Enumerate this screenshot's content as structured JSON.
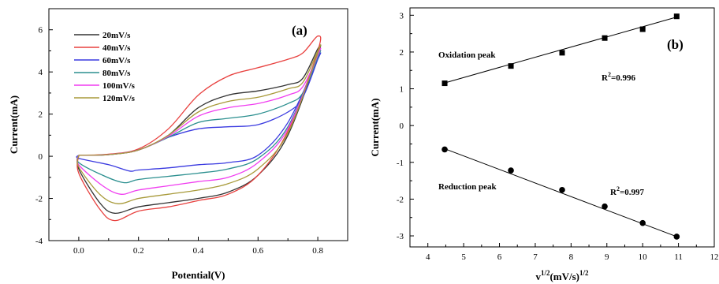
{
  "chart_data": [
    {
      "type": "line",
      "panel_label": "(a)",
      "xlabel": "Potential(V)",
      "ylabel": "Current(mA)",
      "xlim": [
        -0.1,
        0.9
      ],
      "ylim": [
        -4,
        7
      ],
      "xticks": [
        "0.0",
        "0.2",
        "0.4",
        "0.6",
        "0.8"
      ],
      "xtick_values": [
        0.0,
        0.2,
        0.4,
        0.6,
        0.8
      ],
      "yticks": [
        "-4",
        "-2",
        "0",
        "2",
        "4",
        "6"
      ],
      "ytick_values": [
        -4,
        -2,
        0,
        2,
        4,
        6
      ],
      "legend_position": "top-left",
      "series": [
        {
          "name": "20mV/s",
          "color": "#333333",
          "upper": [
            [
              0.0,
              0.05
            ],
            [
              0.1,
              0.08
            ],
            [
              0.2,
              0.3
            ],
            [
              0.3,
              1.0
            ],
            [
              0.4,
              2.3
            ],
            [
              0.5,
              2.9
            ],
            [
              0.6,
              3.1
            ],
            [
              0.7,
              3.4
            ],
            [
              0.75,
              3.7
            ],
            [
              0.8,
              5.1
            ]
          ],
          "lower": [
            [
              0.8,
              4.8
            ],
            [
              0.7,
              1.0
            ],
            [
              0.6,
              -0.9
            ],
            [
              0.5,
              -1.7
            ],
            [
              0.4,
              -2.0
            ],
            [
              0.3,
              -2.2
            ],
            [
              0.2,
              -2.4
            ],
            [
              0.12,
              -2.7
            ],
            [
              0.07,
              -2.2
            ],
            [
              0.0,
              -0.6
            ]
          ]
        },
        {
          "name": "40mV/s",
          "color": "#e8413f",
          "upper": [
            [
              0.0,
              0.05
            ],
            [
              0.1,
              0.1
            ],
            [
              0.2,
              0.35
            ],
            [
              0.3,
              1.3
            ],
            [
              0.4,
              2.9
            ],
            [
              0.5,
              3.8
            ],
            [
              0.6,
              4.2
            ],
            [
              0.7,
              4.6
            ],
            [
              0.75,
              4.9
            ],
            [
              0.8,
              5.7
            ]
          ],
          "lower": [
            [
              0.8,
              5.0
            ],
            [
              0.7,
              1.2
            ],
            [
              0.6,
              -0.9
            ],
            [
              0.5,
              -1.8
            ],
            [
              0.4,
              -2.1
            ],
            [
              0.3,
              -2.4
            ],
            [
              0.2,
              -2.6
            ],
            [
              0.12,
              -3.05
            ],
            [
              0.07,
              -2.5
            ],
            [
              0.0,
              -0.8
            ]
          ]
        },
        {
          "name": "60mV/s",
          "color": "#3a3ae0",
          "upper": [
            [
              0.0,
              0.05
            ],
            [
              0.1,
              0.08
            ],
            [
              0.2,
              0.3
            ],
            [
              0.3,
              0.9
            ],
            [
              0.4,
              1.3
            ],
            [
              0.5,
              1.4
            ],
            [
              0.6,
              1.5
            ],
            [
              0.7,
              2.1
            ],
            [
              0.75,
              2.8
            ],
            [
              0.8,
              4.6
            ]
          ],
          "lower": [
            [
              0.8,
              4.6
            ],
            [
              0.7,
              1.6
            ],
            [
              0.6,
              0.05
            ],
            [
              0.5,
              -0.3
            ],
            [
              0.4,
              -0.4
            ],
            [
              0.3,
              -0.55
            ],
            [
              0.2,
              -0.65
            ],
            [
              0.17,
              -0.7
            ],
            [
              0.1,
              -0.4
            ],
            [
              0.0,
              -0.1
            ]
          ]
        },
        {
          "name": "80mV/s",
          "color": "#2b8f8f",
          "upper": [
            [
              0.0,
              0.05
            ],
            [
              0.1,
              0.08
            ],
            [
              0.2,
              0.3
            ],
            [
              0.3,
              0.9
            ],
            [
              0.4,
              1.6
            ],
            [
              0.5,
              1.8
            ],
            [
              0.6,
              2.0
            ],
            [
              0.7,
              2.5
            ],
            [
              0.75,
              3.0
            ],
            [
              0.8,
              4.7
            ]
          ],
          "lower": [
            [
              0.8,
              4.7
            ],
            [
              0.7,
              1.4
            ],
            [
              0.6,
              -0.1
            ],
            [
              0.5,
              -0.6
            ],
            [
              0.4,
              -0.8
            ],
            [
              0.3,
              -0.95
            ],
            [
              0.2,
              -1.1
            ],
            [
              0.15,
              -1.25
            ],
            [
              0.08,
              -0.9
            ],
            [
              0.0,
              -0.3
            ]
          ]
        },
        {
          "name": "100mV/s",
          "color": "#f03cf0",
          "upper": [
            [
              0.0,
              0.05
            ],
            [
              0.1,
              0.08
            ],
            [
              0.2,
              0.3
            ],
            [
              0.3,
              0.95
            ],
            [
              0.4,
              1.9
            ],
            [
              0.5,
              2.3
            ],
            [
              0.6,
              2.5
            ],
            [
              0.7,
              2.9
            ],
            [
              0.75,
              3.3
            ],
            [
              0.8,
              4.8
            ]
          ],
          "lower": [
            [
              0.8,
              4.8
            ],
            [
              0.7,
              1.3
            ],
            [
              0.6,
              -0.3
            ],
            [
              0.5,
              -1.0
            ],
            [
              0.4,
              -1.2
            ],
            [
              0.3,
              -1.4
            ],
            [
              0.2,
              -1.6
            ],
            [
              0.14,
              -1.8
            ],
            [
              0.08,
              -1.4
            ],
            [
              0.0,
              -0.4
            ]
          ]
        },
        {
          "name": "120mV/s",
          "color": "#a89a3a",
          "upper": [
            [
              0.0,
              0.05
            ],
            [
              0.1,
              0.08
            ],
            [
              0.2,
              0.3
            ],
            [
              0.3,
              1.0
            ],
            [
              0.4,
              2.1
            ],
            [
              0.5,
              2.6
            ],
            [
              0.6,
              2.8
            ],
            [
              0.7,
              3.2
            ],
            [
              0.75,
              3.5
            ],
            [
              0.8,
              5.0
            ]
          ],
          "lower": [
            [
              0.8,
              4.9
            ],
            [
              0.7,
              1.1
            ],
            [
              0.6,
              -0.6
            ],
            [
              0.5,
              -1.3
            ],
            [
              0.4,
              -1.6
            ],
            [
              0.3,
              -1.8
            ],
            [
              0.2,
              -2.0
            ],
            [
              0.13,
              -2.25
            ],
            [
              0.07,
              -1.8
            ],
            [
              0.0,
              -0.5
            ]
          ]
        }
      ]
    },
    {
      "type": "scatter",
      "panel_label": "(b)",
      "xlabel_base": "v",
      "xlabel_sup1": "1/2",
      "xlabel_mid": "(mV/s)",
      "xlabel_sup2": "1/2",
      "ylabel": "Current(mA)",
      "xlim": [
        3.5,
        12
      ],
      "ylim": [
        -3.3,
        3.2
      ],
      "xticks": [
        "4",
        "5",
        "6",
        "7",
        "8",
        "9",
        "10",
        "11",
        "12"
      ],
      "xtick_values": [
        4,
        5,
        6,
        7,
        8,
        9,
        10,
        11,
        12
      ],
      "yticks": [
        "-3",
        "-2",
        "-1",
        "0",
        "1",
        "2",
        "3"
      ],
      "ytick_values": [
        -3,
        -2,
        -1,
        0,
        1,
        2,
        3
      ],
      "series": [
        {
          "name": "Oxidation peak",
          "marker": "square",
          "x": [
            4.47,
            6.32,
            7.75,
            8.94,
            10.0,
            10.95
          ],
          "y": [
            1.15,
            1.62,
            1.98,
            2.38,
            2.62,
            2.97
          ],
          "fit": [
            [
              4.47,
              1.16
            ],
            [
              10.95,
              2.95
            ]
          ],
          "r2_base": "R",
          "r2_sup": "2",
          "r2_value": "=0.996"
        },
        {
          "name": "Reduction peak",
          "marker": "circle",
          "x": [
            4.47,
            6.32,
            7.75,
            8.94,
            10.0,
            10.95
          ],
          "y": [
            -0.65,
            -1.22,
            -1.75,
            -2.2,
            -2.65,
            -3.02
          ],
          "fit": [
            [
              4.47,
              -0.63
            ],
            [
              10.95,
              -3.02
            ]
          ],
          "r2_base": "R",
          "r2_sup": "2",
          "r2_value": "=0.997"
        }
      ]
    }
  ]
}
